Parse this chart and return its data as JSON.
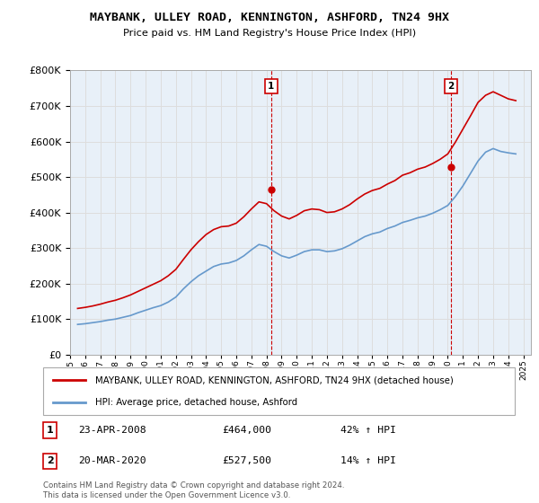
{
  "title": "MAYBANK, ULLEY ROAD, KENNINGTON, ASHFORD, TN24 9HX",
  "subtitle": "Price paid vs. HM Land Registry's House Price Index (HPI)",
  "ylim": [
    0,
    800000
  ],
  "xlim_start": 1995.0,
  "xlim_end": 2025.5,
  "marker1_x": 2008.31,
  "marker1_y": 464000,
  "marker1_label": "1",
  "marker1_date": "23-APR-2008",
  "marker1_price": "£464,000",
  "marker1_hpi": "42% ↑ HPI",
  "marker2_x": 2020.21,
  "marker2_y": 527500,
  "marker2_label": "2",
  "marker2_date": "20-MAR-2020",
  "marker2_price": "£527,500",
  "marker2_hpi": "14% ↑ HPI",
  "red_line_color": "#cc0000",
  "blue_line_color": "#6699cc",
  "marker_box_color": "#cc0000",
  "background_color": "#ffffff",
  "grid_color": "#dddddd",
  "legend_label_red": "MAYBANK, ULLEY ROAD, KENNINGTON, ASHFORD, TN24 9HX (detached house)",
  "legend_label_blue": "HPI: Average price, detached house, Ashford",
  "footer_text": "Contains HM Land Registry data © Crown copyright and database right 2024.\nThis data is licensed under the Open Government Licence v3.0.",
  "years": [
    1995.5,
    1996.0,
    1996.5,
    1997.0,
    1997.5,
    1998.0,
    1998.5,
    1999.0,
    1999.5,
    2000.0,
    2000.5,
    2001.0,
    2001.5,
    2002.0,
    2002.5,
    2003.0,
    2003.5,
    2004.0,
    2004.5,
    2005.0,
    2005.5,
    2006.0,
    2006.5,
    2007.0,
    2007.5,
    2008.0,
    2008.5,
    2009.0,
    2009.5,
    2010.0,
    2010.5,
    2011.0,
    2011.5,
    2012.0,
    2012.5,
    2013.0,
    2013.5,
    2014.0,
    2014.5,
    2015.0,
    2015.5,
    2016.0,
    2016.5,
    2017.0,
    2017.5,
    2018.0,
    2018.5,
    2019.0,
    2019.5,
    2020.0,
    2020.5,
    2021.0,
    2021.5,
    2022.0,
    2022.5,
    2023.0,
    2023.5,
    2024.0,
    2024.5
  ],
  "hpi_values": [
    85000,
    87000,
    90000,
    93000,
    97000,
    100000,
    105000,
    110000,
    118000,
    125000,
    132000,
    138000,
    148000,
    162000,
    185000,
    205000,
    222000,
    235000,
    248000,
    255000,
    258000,
    265000,
    278000,
    295000,
    310000,
    305000,
    290000,
    278000,
    272000,
    280000,
    290000,
    295000,
    295000,
    290000,
    292000,
    298000,
    308000,
    320000,
    332000,
    340000,
    345000,
    355000,
    362000,
    372000,
    378000,
    385000,
    390000,
    398000,
    408000,
    420000,
    445000,
    475000,
    510000,
    545000,
    570000,
    580000,
    572000,
    568000,
    565000
  ],
  "red_values": [
    130000,
    133000,
    137000,
    142000,
    148000,
    153000,
    160000,
    168000,
    178000,
    188000,
    198000,
    208000,
    222000,
    240000,
    268000,
    295000,
    318000,
    338000,
    352000,
    360000,
    362000,
    370000,
    388000,
    410000,
    430000,
    425000,
    405000,
    390000,
    382000,
    392000,
    405000,
    410000,
    408000,
    400000,
    402000,
    410000,
    422000,
    438000,
    452000,
    462000,
    468000,
    480000,
    490000,
    505000,
    512000,
    522000,
    528000,
    538000,
    550000,
    565000,
    598000,
    635000,
    672000,
    710000,
    730000,
    740000,
    730000,
    720000,
    715000
  ]
}
